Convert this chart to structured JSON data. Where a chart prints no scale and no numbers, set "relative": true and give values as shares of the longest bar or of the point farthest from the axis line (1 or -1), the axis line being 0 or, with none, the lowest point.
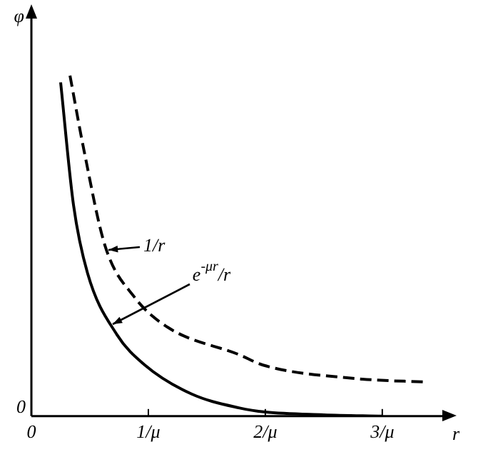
{
  "chart_data": {
    "type": "line",
    "xlabel": "r",
    "ylabel": "φ",
    "relative": true,
    "xlim": [
      0,
      3.55
    ],
    "xticks": [
      0,
      {
        "value": 1,
        "label": "1/μ"
      },
      {
        "value": 2,
        "label": "2/μ"
      },
      {
        "value": 3,
        "label": "3/μ"
      }
    ],
    "grid": false,
    "legend": false,
    "marker": "none",
    "series": [
      {
        "color": "#000000",
        "line_style": "dashed",
        "x": [
          0.33,
          0.45,
          0.63,
          0.88,
          1.17,
          1.78,
          1.98,
          2.79,
          3.39
        ],
        "values": [
          1,
          0.78,
          0.5,
          0.35,
          0.26,
          0.18,
          0.15,
          0.11,
          0.1
        ]
      },
      {
        "color": "#000000",
        "line_style": "solid",
        "x": [
          0.25,
          0.36,
          0.48,
          0.73,
          0.97,
          1.37,
          1.78,
          2.0,
          2.5,
          3.0
        ],
        "values": [
          0.98,
          0.62,
          0.42,
          0.24,
          0.15,
          0.065,
          0.024,
          0.012,
          0.004,
          0.0
        ]
      }
    ],
    "annotations": [
      {
        "text": "1/r",
        "x": 0.64,
        "y": 0.49
      },
      {
        "text": "e$^{-μr}$/r",
        "x": 0.67,
        "y": 0.27
      },
      "0"
    ]
  }
}
